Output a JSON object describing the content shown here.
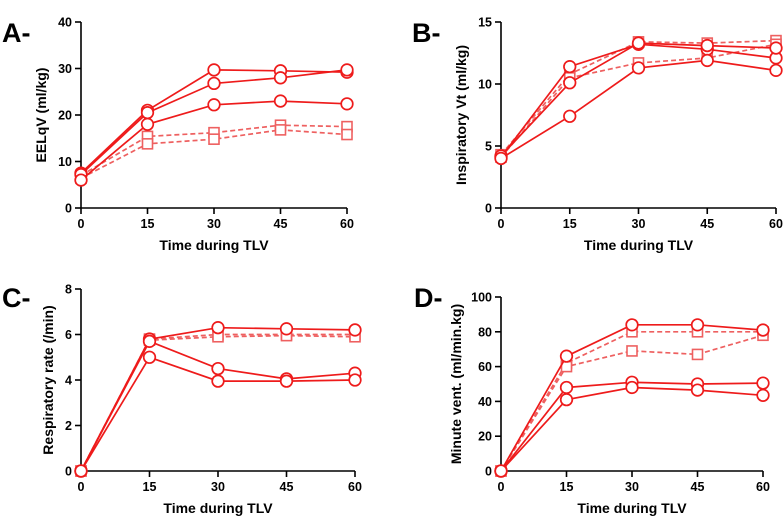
{
  "colors": {
    "series": "#ee1b1b",
    "squares": "#ee6060",
    "axis": "#000000"
  },
  "chart_data": [
    {
      "panel_label": "A-",
      "type": "line",
      "xlabel": "Time during TLV",
      "ylabel": "EELqV (ml/kg)",
      "xlim": [
        0,
        60
      ],
      "ylim": [
        0,
        40
      ],
      "xticks": [
        0,
        15,
        30,
        45,
        60
      ],
      "yticks": [
        0,
        10,
        20,
        30,
        40
      ],
      "grid": false,
      "x": [
        0,
        15,
        30,
        45,
        60
      ],
      "series": [
        {
          "marker": "circle",
          "dash": false,
          "values": [
            7.5,
            21,
            29.7,
            29.5,
            29.2
          ]
        },
        {
          "marker": "circle",
          "dash": false,
          "values": [
            7.2,
            20.5,
            26.8,
            28,
            29.7
          ]
        },
        {
          "marker": "circle",
          "dash": false,
          "values": [
            6,
            18,
            22.2,
            23,
            22.4
          ]
        },
        {
          "marker": "square",
          "dash": true,
          "values": [
            7,
            15.4,
            16.2,
            17.8,
            17.5
          ]
        },
        {
          "marker": "square",
          "dash": true,
          "values": [
            6.4,
            13.8,
            14.8,
            16.8,
            15.8
          ]
        }
      ]
    },
    {
      "panel_label": "B-",
      "type": "line",
      "xlabel": "Time during TLV",
      "ylabel": "Inspiratory Vt (ml/kg)",
      "xlim": [
        0,
        60
      ],
      "ylim": [
        0,
        15
      ],
      "xticks": [
        0,
        15,
        30,
        45,
        60
      ],
      "yticks": [
        0,
        5,
        10,
        15
      ],
      "grid": false,
      "x": [
        0,
        15,
        30,
        45,
        60
      ],
      "series": [
        {
          "marker": "circle",
          "dash": false,
          "values": [
            4.1,
            11.4,
            13.2,
            12.8,
            12.1
          ]
        },
        {
          "marker": "circle",
          "dash": false,
          "values": [
            4.2,
            10.1,
            13.3,
            13.1,
            12.9
          ]
        },
        {
          "marker": "circle",
          "dash": false,
          "values": [
            4.0,
            7.4,
            11.3,
            11.9,
            11.1
          ]
        },
        {
          "marker": "square",
          "dash": true,
          "values": [
            4.3,
            10.8,
            13.4,
            13.3,
            13.5
          ]
        },
        {
          "marker": "square",
          "dash": true,
          "values": [
            4.1,
            10.5,
            11.7,
            12.1,
            13.2
          ]
        }
      ]
    },
    {
      "panel_label": "C-",
      "type": "line",
      "xlabel": "Time during TLV",
      "ylabel": "Respiratory rate (/min)",
      "xlim": [
        0,
        60
      ],
      "ylim": [
        0,
        8
      ],
      "xticks": [
        0,
        15,
        30,
        45,
        60
      ],
      "yticks": [
        0,
        2,
        4,
        6,
        8
      ],
      "grid": false,
      "x": [
        0,
        15,
        30,
        45,
        60
      ],
      "series": [
        {
          "marker": "circle",
          "dash": false,
          "values": [
            0,
            5.8,
            6.3,
            6.25,
            6.2
          ]
        },
        {
          "marker": "circle",
          "dash": false,
          "values": [
            0,
            5.7,
            4.5,
            4.05,
            4.3
          ]
        },
        {
          "marker": "circle",
          "dash": false,
          "values": [
            0,
            5.0,
            3.95,
            3.95,
            4.0
          ]
        },
        {
          "marker": "square",
          "dash": true,
          "values": [
            0,
            5.8,
            6.0,
            6.0,
            6.0
          ]
        },
        {
          "marker": "square",
          "dash": true,
          "values": [
            0,
            5.75,
            5.9,
            5.95,
            5.9
          ]
        }
      ]
    },
    {
      "panel_label": "D-",
      "type": "line",
      "xlabel": "Time during TLV",
      "ylabel": "Minute vent. (ml/min.kg)",
      "xlim": [
        0,
        60
      ],
      "ylim": [
        0,
        100
      ],
      "xticks": [
        0,
        15,
        30,
        45,
        60
      ],
      "yticks": [
        0,
        20,
        40,
        60,
        80,
        100
      ],
      "grid": false,
      "x": [
        0,
        15,
        30,
        45,
        60
      ],
      "series": [
        {
          "marker": "circle",
          "dash": false,
          "values": [
            0,
            66,
            84,
            84,
            81
          ]
        },
        {
          "marker": "circle",
          "dash": false,
          "values": [
            0,
            48,
            51,
            50,
            50.5
          ]
        },
        {
          "marker": "circle",
          "dash": false,
          "values": [
            0,
            41,
            48,
            46.5,
            43.5
          ]
        },
        {
          "marker": "square",
          "dash": true,
          "values": [
            0,
            62,
            80,
            80,
            80
          ]
        },
        {
          "marker": "square",
          "dash": true,
          "values": [
            0,
            60,
            69,
            67,
            78
          ]
        }
      ]
    }
  ]
}
